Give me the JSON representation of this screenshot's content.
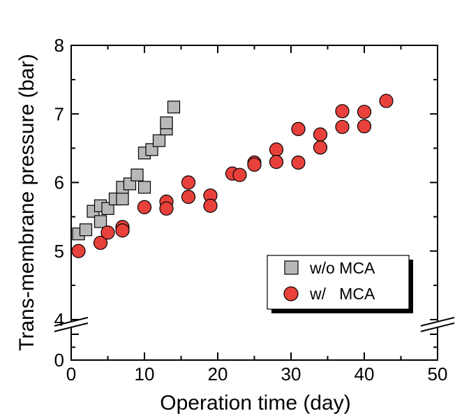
{
  "chart_data": {
    "type": "scatter",
    "title": "",
    "xlabel": "Operation time (day)",
    "ylabel": "Trans-membrane pressure (bar)",
    "xlim": [
      0,
      50
    ],
    "ylim": [
      0,
      8
    ],
    "axis_break": [
      1,
      4
    ],
    "x_ticks": [
      "0",
      "10",
      "20",
      "30",
      "40",
      "50"
    ],
    "y_ticks": [
      "0",
      "4",
      "5",
      "6",
      "7",
      "8"
    ],
    "grid": false,
    "legend_position": "bottom-right",
    "series": [
      {
        "name": "w/o MCA",
        "marker": "square",
        "color": "#b8b8b8",
        "points": [
          [
            1,
            5.25
          ],
          [
            2,
            5.31
          ],
          [
            3,
            5.58
          ],
          [
            4,
            5.43
          ],
          [
            4,
            5.66
          ],
          [
            5,
            5.62
          ],
          [
            6,
            5.76
          ],
          [
            7,
            5.76
          ],
          [
            7,
            5.93
          ],
          [
            8,
            5.98
          ],
          [
            9,
            6.11
          ],
          [
            10,
            5.93
          ],
          [
            10,
            6.43
          ],
          [
            11,
            6.48
          ],
          [
            12,
            6.61
          ],
          [
            13,
            6.78
          ],
          [
            13,
            6.87
          ],
          [
            14,
            7.1
          ]
        ]
      },
      {
        "name": "w/   MCA",
        "marker": "circle",
        "color": "#e8413c",
        "points": [
          [
            1,
            5.0
          ],
          [
            4,
            5.12
          ],
          [
            5,
            5.27
          ],
          [
            7,
            5.35
          ],
          [
            7,
            5.3
          ],
          [
            10,
            5.64
          ],
          [
            13,
            5.72
          ],
          [
            13,
            5.62
          ],
          [
            16,
            6.0
          ],
          [
            16,
            5.79
          ],
          [
            19,
            5.81
          ],
          [
            19,
            5.66
          ],
          [
            22,
            6.13
          ],
          [
            23,
            6.11
          ],
          [
            25,
            6.29
          ],
          [
            25,
            6.26
          ],
          [
            28,
            6.48
          ],
          [
            28,
            6.3
          ],
          [
            31,
            6.78
          ],
          [
            31,
            6.29
          ],
          [
            34,
            6.7
          ],
          [
            34,
            6.51
          ],
          [
            37,
            7.04
          ],
          [
            37,
            6.81
          ],
          [
            40,
            7.03
          ],
          [
            40,
            6.82
          ],
          [
            43,
            7.19
          ]
        ]
      }
    ]
  }
}
